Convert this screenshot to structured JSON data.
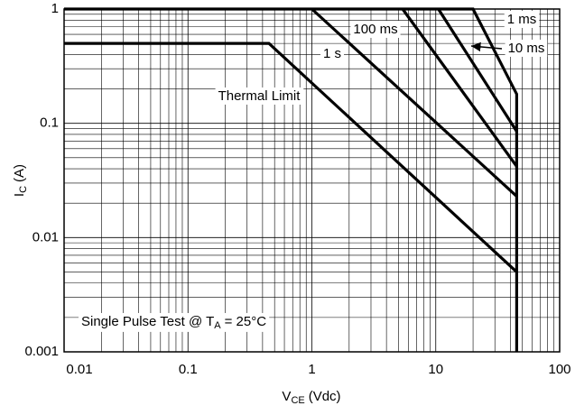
{
  "chart_data": {
    "type": "line",
    "log_x": true,
    "log_y": true,
    "grid": true,
    "minor_grid": true,
    "xlabel": {
      "main": "V",
      "sub": "CE",
      "tail": "(Vdc)"
    },
    "ylabel": {
      "main": "I",
      "sub": "C",
      "tail": "(A)"
    },
    "xlim": [
      0.01,
      100
    ],
    "xticks": [
      0.01,
      0.1,
      1,
      10,
      100
    ],
    "ylim": [
      0.001,
      1
    ],
    "yticks": [
      0.001,
      0.01,
      0.1,
      1
    ],
    "series": [
      {
        "name": "Thermal Limit",
        "color": "#000000",
        "x": [
          0.01,
          0.45,
          45
        ],
        "values": [
          0.5,
          0.5,
          0.005
        ]
      },
      {
        "name": "1 s",
        "color": "#000000",
        "x": [
          1,
          45
        ],
        "values": [
          1,
          0.023
        ]
      },
      {
        "name": "100 ms",
        "color": "#000000",
        "x": [
          5.4,
          45
        ],
        "values": [
          1,
          0.042
        ]
      },
      {
        "name": "10 ms",
        "color": "#000000",
        "x": [
          10.5,
          45
        ],
        "values": [
          1,
          0.085
        ]
      },
      {
        "name": "1 ms",
        "color": "#000000",
        "x": [
          0.01,
          20,
          45,
          45
        ],
        "values": [
          1,
          1,
          0.18,
          0.001
        ]
      }
    ],
    "annotation": {
      "main": "Single Pulse Test @ T",
      "sub": "A",
      "tail": "= 25°C"
    }
  }
}
